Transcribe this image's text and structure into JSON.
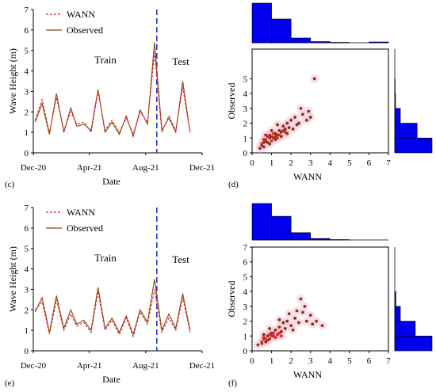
{
  "figure": {
    "panels": [
      {
        "id": "c",
        "tag": "(c)"
      },
      {
        "id": "d",
        "tag": "(d)"
      },
      {
        "id": "e",
        "tag": "(e)"
      },
      {
        "id": "f",
        "tag": "(f)"
      }
    ]
  },
  "colors": {
    "wann": "#d42a2a",
    "observed": "#8b4513",
    "split_line": "#2233cc",
    "histogram": "#0000ee",
    "scatter_observed": "#7a3b10",
    "scatter_wann": "#e0202a",
    "scatter_halo": "#f7c6dc"
  },
  "chart_data": [
    {
      "panel": "c",
      "type": "line",
      "xlabel": "Date",
      "ylabel": "Wave Height (m)",
      "x_ticks": [
        "Dec-20",
        "Apr-21",
        "Aug-21",
        "Dec-21"
      ],
      "x_range": [
        "2020-12-01",
        "2021-12-01"
      ],
      "ylim": [
        0,
        7
      ],
      "y_ticks": [
        "0",
        "1",
        "2",
        "3",
        "4",
        "5",
        "6",
        "7"
      ],
      "split_date": "2021-08-25",
      "annotations": [
        "Train",
        "Test"
      ],
      "legend": "top-left",
      "series": [
        {
          "name": "WANN",
          "style": "dashed",
          "color": "#d42a2a",
          "x": [
            "2020-12-05",
            "2020-12-20",
            "2021-01-05",
            "2021-01-20",
            "2021-02-05",
            "2021-02-20",
            "2021-03-05",
            "2021-03-20",
            "2021-04-05",
            "2021-04-20",
            "2021-05-05",
            "2021-05-20",
            "2021-06-05",
            "2021-06-20",
            "2021-07-05",
            "2021-07-20",
            "2021-08-05",
            "2021-08-20",
            "2021-09-05",
            "2021-09-20",
            "2021-10-05",
            "2021-10-20",
            "2021-11-05"
          ],
          "y": [
            1.6,
            2.6,
            1.0,
            2.7,
            1.1,
            2.0,
            1.4,
            1.5,
            1.0,
            3.0,
            1.1,
            1.6,
            1.0,
            1.7,
            0.9,
            2.0,
            1.5,
            4.9,
            1.0,
            1.8,
            1.1,
            3.2,
            1.0
          ]
        },
        {
          "name": "Observed",
          "style": "solid",
          "color": "#8b4513",
          "x": [
            "2020-12-05",
            "2020-12-20",
            "2021-01-05",
            "2021-01-20",
            "2021-02-05",
            "2021-02-20",
            "2021-03-05",
            "2021-03-20",
            "2021-04-05",
            "2021-04-20",
            "2021-05-05",
            "2021-05-20",
            "2021-06-05",
            "2021-06-20",
            "2021-07-05",
            "2021-07-20",
            "2021-08-05",
            "2021-08-20",
            "2021-09-05",
            "2021-09-20",
            "2021-10-05",
            "2021-10-20",
            "2021-11-05"
          ],
          "y": [
            1.5,
            2.4,
            0.9,
            2.9,
            1.0,
            2.2,
            1.3,
            1.4,
            1.1,
            3.1,
            1.0,
            1.5,
            0.9,
            1.8,
            0.8,
            2.1,
            1.4,
            5.4,
            1.1,
            1.7,
            1.0,
            3.5,
            1.0
          ]
        }
      ]
    },
    {
      "panel": "d",
      "type": "scatter",
      "xlabel": "WANN",
      "ylabel": "Observed",
      "xlim": [
        0,
        7
      ],
      "ylim": [
        0,
        7
      ],
      "x_ticks": [
        "0",
        "1",
        "2",
        "3",
        "4",
        "5",
        "6",
        "7"
      ],
      "y_ticks": [
        "0",
        "1",
        "2",
        "3",
        "4",
        "5"
      ],
      "points_train": [
        [
          0.4,
          0.3
        ],
        [
          0.5,
          0.5
        ],
        [
          0.6,
          0.7
        ],
        [
          0.7,
          0.8
        ],
        [
          0.8,
          0.7
        ],
        [
          0.9,
          1.0
        ],
        [
          1.0,
          1.1
        ],
        [
          1.1,
          1.0
        ],
        [
          1.2,
          1.3
        ],
        [
          1.3,
          1.2
        ],
        [
          1.4,
          1.5
        ],
        [
          1.5,
          1.4
        ],
        [
          1.6,
          1.8
        ],
        [
          1.7,
          1.6
        ],
        [
          1.8,
          2.0
        ],
        [
          1.9,
          1.7
        ],
        [
          2.0,
          2.2
        ],
        [
          2.2,
          2.4
        ],
        [
          2.4,
          2.0
        ],
        [
          2.6,
          2.6
        ],
        [
          0.6,
          0.4
        ],
        [
          0.9,
          0.6
        ],
        [
          1.2,
          0.9
        ],
        [
          1.5,
          1.1
        ],
        [
          1.8,
          1.3
        ],
        [
          2.1,
          1.6
        ],
        [
          2.3,
          1.9
        ],
        [
          2.8,
          2.2
        ],
        [
          3.0,
          2.4
        ],
        [
          3.2,
          5.0
        ],
        [
          2.5,
          3.0
        ],
        [
          1.3,
          1.9
        ],
        [
          1.0,
          1.5
        ],
        [
          0.7,
          1.2
        ],
        [
          2.9,
          2.8
        ]
      ],
      "points_test": [
        [
          0.5,
          0.6
        ],
        [
          0.7,
          0.9
        ],
        [
          0.8,
          1.1
        ],
        [
          1.0,
          0.8
        ],
        [
          1.1,
          1.3
        ],
        [
          1.2,
          1.1
        ],
        [
          1.3,
          1.0
        ],
        [
          1.4,
          1.2
        ],
        [
          1.6,
          1.5
        ],
        [
          0.9,
          1.2
        ],
        [
          1.7,
          1.4
        ],
        [
          0.6,
          0.9
        ]
      ],
      "histogram_x": {
        "bins": [
          0,
          1,
          2,
          3,
          4,
          5,
          6,
          7
        ],
        "counts": [
          100,
          60,
          12,
          3,
          1,
          0,
          2
        ]
      },
      "histogram_y": {
        "bins": [
          0,
          1,
          2,
          3,
          4,
          5,
          6,
          7
        ],
        "counts": [
          100,
          60,
          15,
          2,
          1,
          0,
          0
        ]
      }
    },
    {
      "panel": "e",
      "type": "line",
      "xlabel": "Date",
      "ylabel": "Wave Height (m)",
      "x_ticks": [
        "Dec-20",
        "Apr-21",
        "Aug-21",
        "Dec-21"
      ],
      "x_range": [
        "2020-12-01",
        "2021-12-01"
      ],
      "ylim": [
        0,
        7
      ],
      "y_ticks": [
        "0",
        "1",
        "2",
        "3",
        "4",
        "5",
        "6",
        "7"
      ],
      "split_date": "2021-08-25",
      "annotations": [
        "Train",
        "Test"
      ],
      "legend": "top-left",
      "series": [
        {
          "name": "WANN",
          "style": "dashed",
          "color": "#d42a2a",
          "x": [
            "2020-12-05",
            "2020-12-20",
            "2021-01-05",
            "2021-01-20",
            "2021-02-05",
            "2021-02-20",
            "2021-03-05",
            "2021-03-20",
            "2021-04-05",
            "2021-04-20",
            "2021-05-05",
            "2021-05-20",
            "2021-06-05",
            "2021-06-20",
            "2021-07-05",
            "2021-07-20",
            "2021-08-05",
            "2021-08-20",
            "2021-09-05",
            "2021-09-20",
            "2021-10-05",
            "2021-10-20",
            "2021-11-05"
          ],
          "y": [
            2.0,
            2.4,
            0.8,
            2.5,
            1.0,
            1.8,
            1.2,
            1.4,
            0.9,
            2.9,
            1.0,
            1.5,
            0.8,
            1.6,
            0.7,
            1.9,
            1.3,
            3.0,
            0.9,
            1.6,
            1.0,
            2.6,
            0.9
          ]
        },
        {
          "name": "Observed",
          "style": "solid",
          "color": "#8b4513",
          "x": [
            "2020-12-05",
            "2020-12-20",
            "2021-01-05",
            "2021-01-20",
            "2021-02-05",
            "2021-02-20",
            "2021-03-05",
            "2021-03-20",
            "2021-04-05",
            "2021-04-20",
            "2021-05-05",
            "2021-05-20",
            "2021-06-05",
            "2021-06-20",
            "2021-07-05",
            "2021-07-20",
            "2021-08-05",
            "2021-08-20",
            "2021-09-05",
            "2021-09-20",
            "2021-10-05",
            "2021-10-20",
            "2021-11-05"
          ],
          "y": [
            1.9,
            2.6,
            0.9,
            2.7,
            1.1,
            2.0,
            1.3,
            1.5,
            1.0,
            3.1,
            1.1,
            1.6,
            0.9,
            1.7,
            0.8,
            2.0,
            1.4,
            3.5,
            1.0,
            1.8,
            1.1,
            2.8,
            1.0
          ]
        }
      ]
    },
    {
      "panel": "f",
      "type": "scatter",
      "xlabel": "WANN",
      "ylabel": "Observed",
      "xlim": [
        0,
        7
      ],
      "ylim": [
        0,
        7
      ],
      "x_ticks": [
        "0",
        "1",
        "2",
        "3",
        "4",
        "5",
        "6",
        "7"
      ],
      "y_ticks": [
        "0",
        "1",
        "2",
        "3",
        "4",
        "5",
        "6",
        "7"
      ],
      "points_train": [
        [
          0.3,
          0.4
        ],
        [
          0.5,
          0.5
        ],
        [
          0.6,
          0.8
        ],
        [
          0.7,
          0.6
        ],
        [
          0.8,
          1.0
        ],
        [
          0.9,
          0.8
        ],
        [
          1.0,
          1.2
        ],
        [
          1.1,
          1.0
        ],
        [
          1.2,
          1.4
        ],
        [
          1.3,
          1.1
        ],
        [
          1.4,
          1.6
        ],
        [
          1.5,
          1.3
        ],
        [
          1.6,
          1.9
        ],
        [
          1.7,
          1.5
        ],
        [
          1.8,
          2.0
        ],
        [
          2.0,
          1.7
        ],
        [
          2.2,
          2.2
        ],
        [
          2.4,
          1.9
        ],
        [
          2.6,
          2.6
        ],
        [
          2.8,
          2.0
        ],
        [
          3.0,
          2.4
        ],
        [
          3.3,
          2.0
        ],
        [
          3.6,
          1.7
        ],
        [
          2.5,
          3.5
        ],
        [
          2.7,
          3.0
        ],
        [
          1.9,
          2.5
        ],
        [
          1.4,
          2.1
        ],
        [
          0.9,
          1.5
        ],
        [
          0.6,
          1.1
        ],
        [
          2.1,
          1.4
        ],
        [
          3.1,
          1.8
        ],
        [
          2.3,
          2.7
        ]
      ],
      "points_test": [
        [
          0.5,
          0.6
        ],
        [
          0.7,
          0.8
        ],
        [
          0.8,
          0.7
        ],
        [
          1.0,
          1.0
        ],
        [
          1.1,
          1.2
        ],
        [
          1.2,
          0.9
        ],
        [
          1.3,
          1.1
        ],
        [
          1.4,
          1.2
        ],
        [
          0.9,
          1.1
        ],
        [
          1.5,
          1.0
        ],
        [
          0.6,
          0.9
        ]
      ],
      "histogram_x": {
        "bins": [
          0,
          1,
          2,
          3,
          4,
          5,
          6,
          7
        ],
        "counts": [
          100,
          65,
          20,
          4,
          1,
          0,
          0
        ]
      },
      "histogram_y": {
        "bins": [
          0,
          1,
          2,
          3,
          4,
          5,
          6,
          7
        ],
        "counts": [
          100,
          55,
          15,
          3,
          0,
          0,
          0
        ]
      }
    }
  ]
}
